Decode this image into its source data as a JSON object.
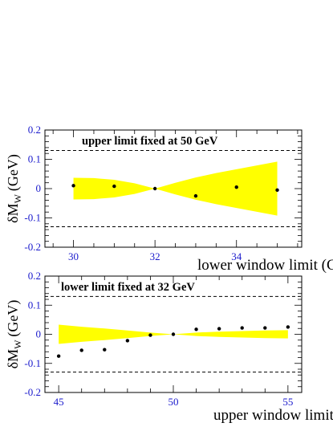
{
  "chart_data": [
    {
      "type": "scatter",
      "annotation": "upper limit fixed at 50 GeV",
      "xlabel": "lower window limit (GeV)",
      "ylabel": {
        "main": "δM",
        "sub": "W",
        "unit": "(GeV)"
      },
      "xlim": [
        29.3,
        35.6
      ],
      "ylim": [
        -0.2,
        0.2
      ],
      "xticks": [
        30,
        32,
        34
      ],
      "yticks": [
        -0.2,
        -0.1,
        0,
        0.1,
        0.2
      ],
      "ytick_labels": [
        "-0.2",
        "-0.1",
        "0",
        "0.1",
        "0.2"
      ],
      "reference_lines": [
        0.13,
        -0.13
      ],
      "band": {
        "color": "#ffff00",
        "x": [
          30,
          30.5,
          31,
          31.5,
          32,
          32.5,
          33,
          33.5,
          34,
          34.5,
          35
        ],
        "upper": [
          0.037,
          0.036,
          0.03,
          0.018,
          0.0,
          0.02,
          0.038,
          0.053,
          0.066,
          0.079,
          0.092
        ],
        "lower": [
          -0.037,
          -0.036,
          -0.03,
          -0.018,
          0.0,
          -0.02,
          -0.038,
          -0.053,
          -0.066,
          -0.079,
          -0.092
        ]
      },
      "points": {
        "x": [
          30,
          31,
          32,
          33,
          34,
          35
        ],
        "y": [
          0.01,
          0.008,
          0.0,
          -0.025,
          0.005,
          -0.005
        ]
      }
    },
    {
      "type": "scatter",
      "annotation": "lower limit fixed at 32 GeV",
      "xlabel": "upper window limit (GeV)",
      "ylabel": {
        "main": "δM",
        "sub": "W",
        "unit": "(GeV)"
      },
      "xlim": [
        44.4,
        55.6
      ],
      "ylim": [
        -0.2,
        0.2
      ],
      "xticks": [
        45,
        50,
        55
      ],
      "yticks": [
        -0.2,
        -0.1,
        0,
        0.1,
        0.2
      ],
      "ytick_labels": [
        "-0.2",
        "-0.1",
        "0",
        "0.1",
        "0.2"
      ],
      "reference_lines": [
        0.13,
        -0.13
      ],
      "band": {
        "color": "#ffff00",
        "x": [
          45,
          46,
          47,
          48,
          49,
          50,
          51,
          52,
          53,
          54,
          55
        ],
        "upper": [
          0.033,
          0.026,
          0.02,
          0.013,
          0.006,
          0.0,
          0.006,
          0.009,
          0.011,
          0.013,
          0.014
        ],
        "lower": [
          -0.033,
          -0.026,
          -0.02,
          -0.013,
          -0.006,
          0.0,
          -0.006,
          -0.009,
          -0.011,
          -0.013,
          -0.014
        ]
      },
      "points": {
        "x": [
          45,
          46,
          47,
          48,
          49,
          50,
          51,
          52,
          53,
          54,
          55
        ],
        "y": [
          -0.075,
          -0.055,
          -0.053,
          -0.022,
          -0.003,
          0.0,
          0.017,
          0.019,
          0.022,
          0.022,
          0.025
        ]
      }
    }
  ]
}
